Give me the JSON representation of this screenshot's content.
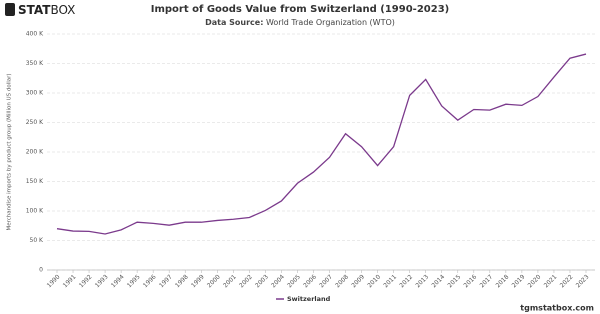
{
  "chart_data": {
    "type": "line",
    "brand": [
      "STAT",
      "BOX"
    ],
    "title": "Import of Goods Value from Switzerland (1990-2023)",
    "subtitle_label": "Data Source:",
    "subtitle": "World Trade Organization (WTO)",
    "y_label": "Merchandise imports by product group (Million US dollar)",
    "footer": "tgmstatbox.com",
    "x": [
      1990,
      1991,
      1992,
      1993,
      1994,
      1995,
      1996,
      1997,
      1998,
      1999,
      2000,
      2001,
      2002,
      2003,
      2004,
      2005,
      2006,
      2007,
      2008,
      2009,
      2010,
      2011,
      2012,
      2013,
      2014,
      2015,
      2016,
      2017,
      2018,
      2019,
      2020,
      2021,
      2022,
      2023
    ],
    "xlim": [
      1990,
      2023
    ],
    "series": [
      {
        "name": "Switzerland",
        "color": "#7b3a8c",
        "values": [
          70000,
          66000,
          65500,
          61000,
          68000,
          81000,
          79000,
          76000,
          81000,
          81000,
          84000,
          86000,
          89000,
          101000,
          117000,
          147000,
          166000,
          191000,
          231000,
          209000,
          177000,
          209000,
          296000,
          323000,
          278000,
          254000,
          272000,
          271000,
          281000,
          279000,
          294000,
          327000,
          359000,
          366000
        ]
      }
    ],
    "ylim": [
      0,
      400000
    ],
    "yticks": [
      0,
      {
        "value": 50000,
        "label": "50 K"
      },
      {
        "value": 100000,
        "label": "100 K"
      },
      {
        "value": 150000,
        "label": "150 K"
      },
      {
        "value": 200000,
        "label": "200 K"
      },
      {
        "value": 250000,
        "label": "250 K"
      },
      {
        "value": 300000,
        "label": "300 K"
      },
      {
        "value": 350000,
        "label": "350 K"
      },
      {
        "value": 400000,
        "label": "400 K"
      }
    ],
    "grid": true,
    "legend": "bottom"
  }
}
